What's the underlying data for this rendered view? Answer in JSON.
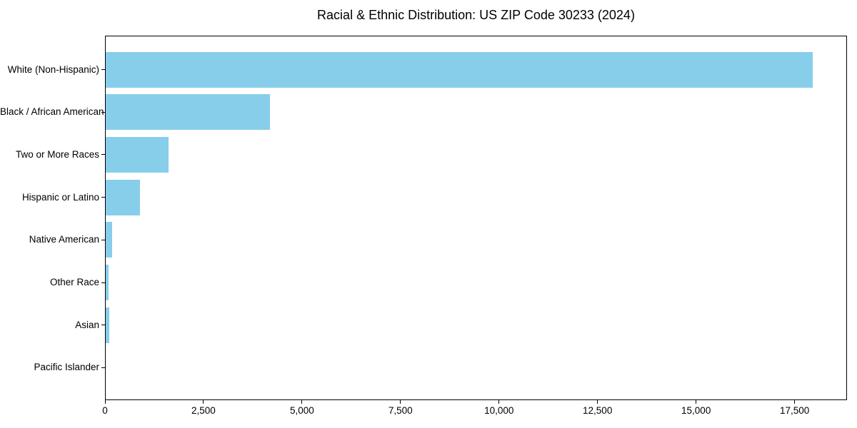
{
  "chart_data": {
    "type": "bar",
    "orientation": "horizontal",
    "title": "Racial & Ethnic Distribution: US ZIP Code 30233 (2024)",
    "categories": [
      "White (Non-Hispanic)",
      "Black / African American",
      "Two or More Races",
      "Hispanic or Latino",
      "Native American",
      "Other Race",
      "Asian",
      "Pacific Islander"
    ],
    "values": [
      17940,
      4170,
      1600,
      860,
      160,
      75,
      90,
      0
    ],
    "bar_color": "#87CEEB",
    "xlabel": "",
    "ylabel": "",
    "xlim": [
      0,
      18830
    ],
    "xticks": [
      0,
      2500,
      5000,
      7500,
      10000,
      12500,
      15000,
      17500
    ],
    "xtick_labels": [
      "0",
      "2,500",
      "5,000",
      "7,500",
      "10,000",
      "12,500",
      "15,000",
      "17,500"
    ],
    "grid": false,
    "legend_position": "none",
    "axis_color": "#000000",
    "background_color": "#ffffff"
  }
}
